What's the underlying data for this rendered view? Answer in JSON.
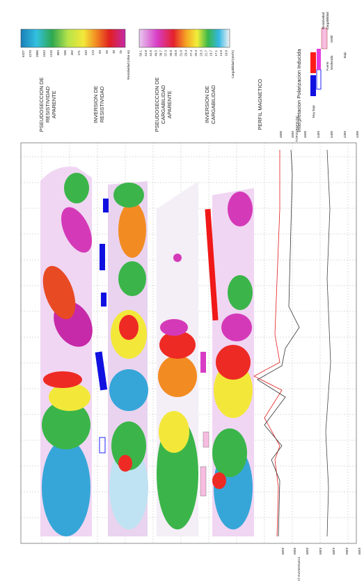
{
  "header": {
    "panels": [
      [
        "PSEUDOSECCION DE",
        "RESISTIVIDAD",
        "APARENTE"
      ],
      [
        "INVERSION DE",
        "RESISTIVIDAD"
      ],
      [
        "PSEUDOSECCION DE",
        "CARGABILIDAD",
        "APARENTE"
      ],
      [
        "INVERSION DE",
        "CARGABILIDAD"
      ],
      [
        "PERFIL MAGNETICO"
      ]
    ],
    "resistivity_scale": {
      "title": "Resistividad (ohm-m)",
      "labels": [
        "6327",
        "4270",
        "2880",
        "1943",
        "1310",
        "884",
        "596",
        "402",
        "271",
        "183",
        "123",
        "83",
        "56",
        "38",
        "25"
      ]
    },
    "chargeability_scale": {
      "title": "Cargabilidad (mV/V)",
      "labels": [
        "50.1",
        "44.8",
        "42.6",
        "40.5",
        "38.7",
        "37.3",
        "35.0",
        "33.0",
        "31.0",
        "29.4",
        "27.4",
        "25.3",
        "23.3",
        "21.7",
        "19.7",
        "17.1",
        "14.0",
        "10.0"
      ]
    },
    "legend": {
      "title": "Interpretacion Polarizacion Inducida",
      "resistivity": "Resistividad",
      "chargeability": "Cargabilidad",
      "items": [
        "Muy bajo",
        "Bajo",
        "Fuerte",
        "Moderada",
        "Debil"
      ]
    }
  },
  "topography_axis": {
    "title": "TOPOGRAFIA (m)",
    "ticks": [
      "4600",
      "4550",
      "4500",
      "4450",
      "4400",
      "4350",
      "4300"
    ]
  }
}
